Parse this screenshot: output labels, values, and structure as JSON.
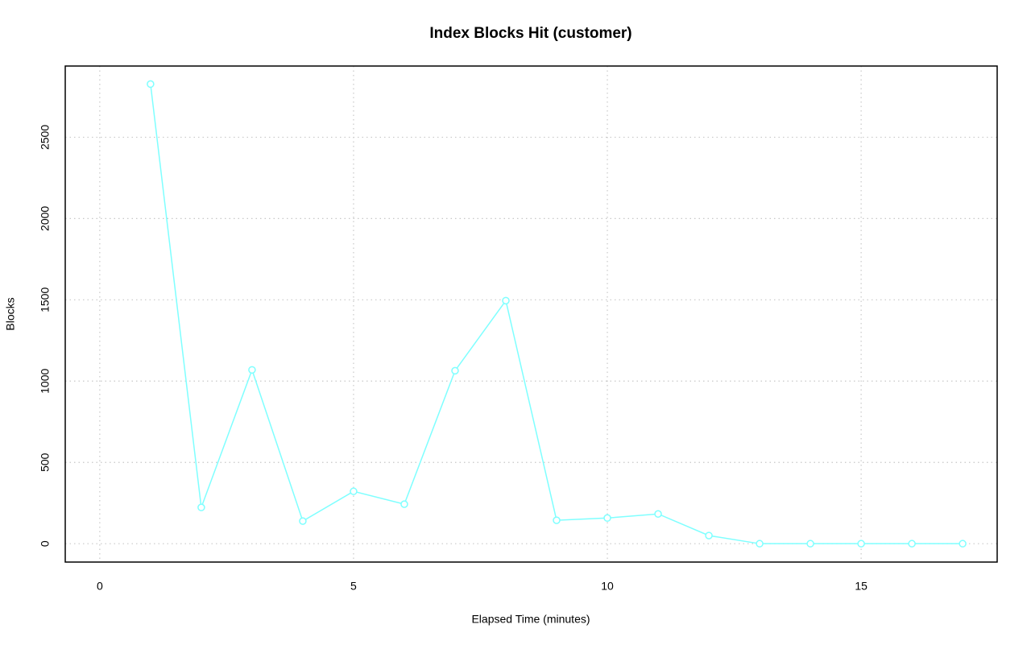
{
  "chart_data": {
    "type": "line",
    "title": "Index Blocks Hit (customer)",
    "x_label": "Elapsed Time (minutes)",
    "y_label": "Blocks",
    "x": [
      1,
      2,
      3,
      4,
      5,
      6,
      7,
      8,
      9,
      10,
      11,
      12,
      13,
      14,
      15,
      16,
      17
    ],
    "series": [
      {
        "color": "#7fffff",
        "values": [
          2827,
          223,
          1069,
          139,
          322,
          243,
          1064,
          1495,
          144,
          158,
          183,
          50,
          0,
          0,
          0,
          0,
          0
        ]
      }
    ],
    "xlim": [
      -0.68,
      17.68
    ],
    "xticks": [
      0,
      5,
      10,
      15
    ],
    "ylim": [
      -113,
      2938
    ],
    "yticks": [
      0,
      500,
      1000,
      1500,
      2000,
      2500
    ],
    "grid": true
  }
}
